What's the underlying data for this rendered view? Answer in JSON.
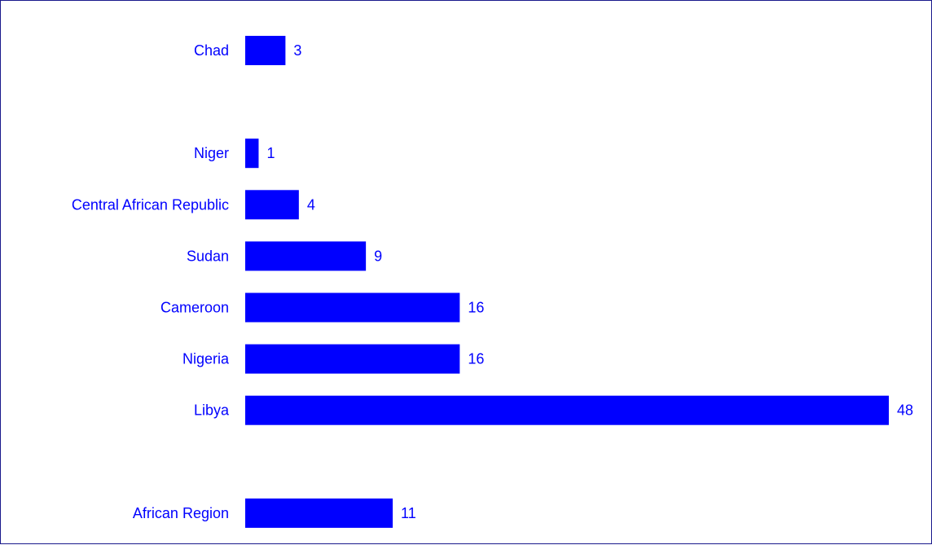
{
  "chart_data": {
    "type": "bar",
    "orientation": "horizontal",
    "title": "",
    "xlabel": "",
    "ylabel": "",
    "categories": [
      "Chad",
      "",
      "Niger",
      "Central African Republic",
      "Sudan",
      "Cameroon",
      "Nigeria",
      "Libya",
      "",
      "African Region"
    ],
    "values": [
      3,
      null,
      1,
      4,
      9,
      16,
      16,
      48,
      null,
      11
    ],
    "value_labels": [
      "3",
      "",
      "1",
      "4",
      "9",
      "16",
      "16",
      "48",
      "",
      "11"
    ],
    "xlim": [
      0,
      48
    ],
    "grid": false,
    "legend": "none",
    "colors": {
      "bar": "#0000ff",
      "text": "#0000ff",
      "frame": "#1a1a8c",
      "background": "#ffffff"
    }
  }
}
